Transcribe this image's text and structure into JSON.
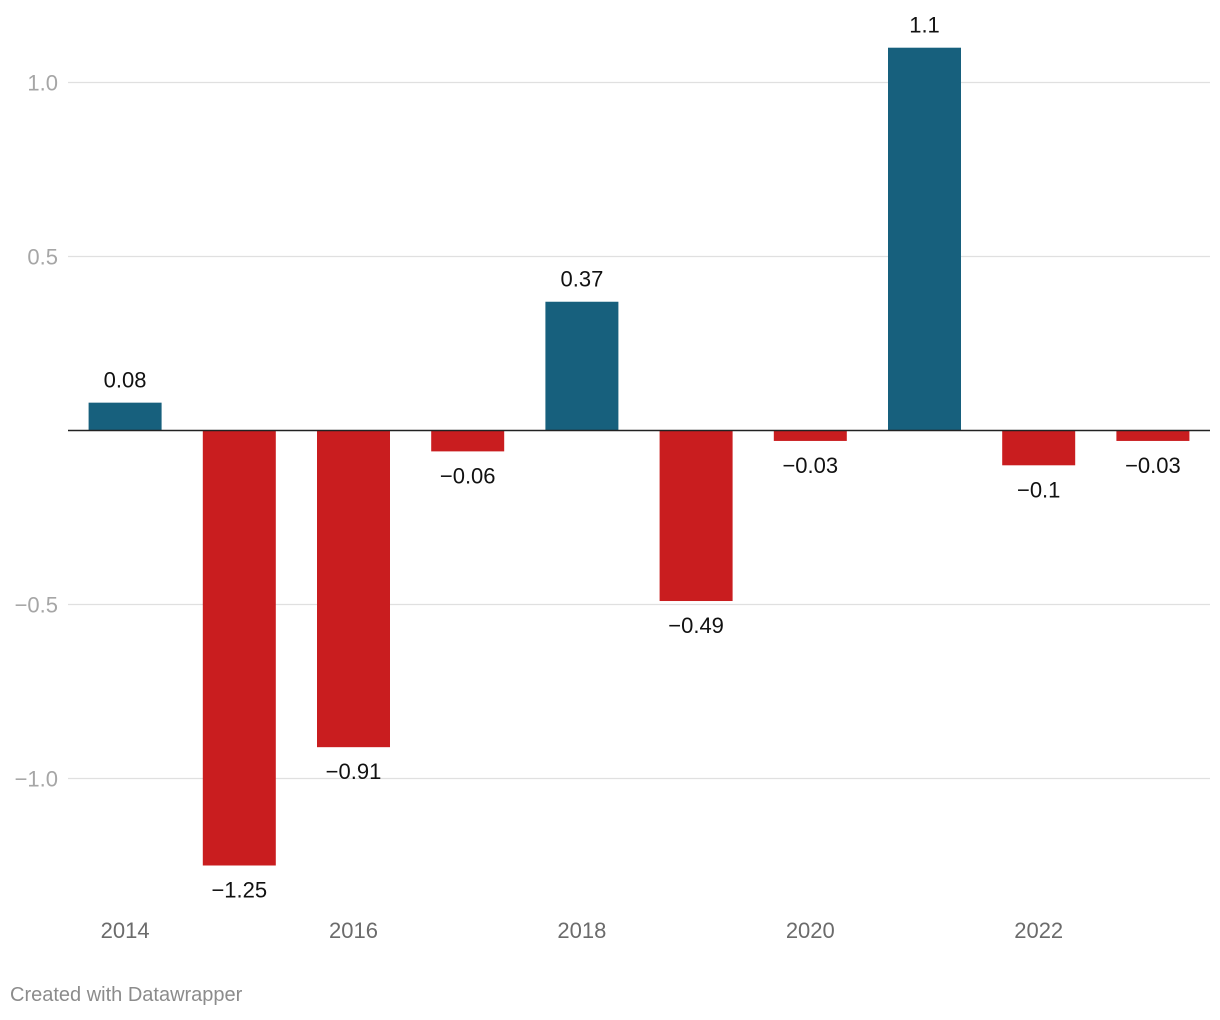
{
  "chart_data": {
    "type": "bar",
    "categories": [
      "2014",
      "2015",
      "2016",
      "2017",
      "2018",
      "2019",
      "2020",
      "2021",
      "2022",
      "2023"
    ],
    "values": [
      0.08,
      -1.25,
      -0.91,
      -0.06,
      0.37,
      -0.49,
      -0.03,
      1.1,
      -0.1,
      -0.03
    ],
    "value_labels": [
      "0.08",
      "−1.25",
      "−0.91",
      "−0.06",
      "0.37",
      "−0.49",
      "−0.03",
      "1.1",
      "−0.1",
      "−0.03"
    ],
    "x_tick_labels": [
      "2014",
      "",
      "2016",
      "",
      "2018",
      "",
      "2020",
      "",
      "2022",
      ""
    ],
    "y_ticks": [
      1.0,
      0.5,
      -0.5,
      -1.0
    ],
    "y_tick_labels": [
      "1.0",
      "0.5",
      "−0.5",
      "−1.0"
    ],
    "ylim": [
      -1.3,
      1.15
    ],
    "title": "",
    "xlabel": "",
    "ylabel": "",
    "grid": true,
    "colors": {
      "positive": "#17607d",
      "negative": "#c91d1f"
    }
  },
  "footer": {
    "credit": "Created with Datawrapper"
  }
}
